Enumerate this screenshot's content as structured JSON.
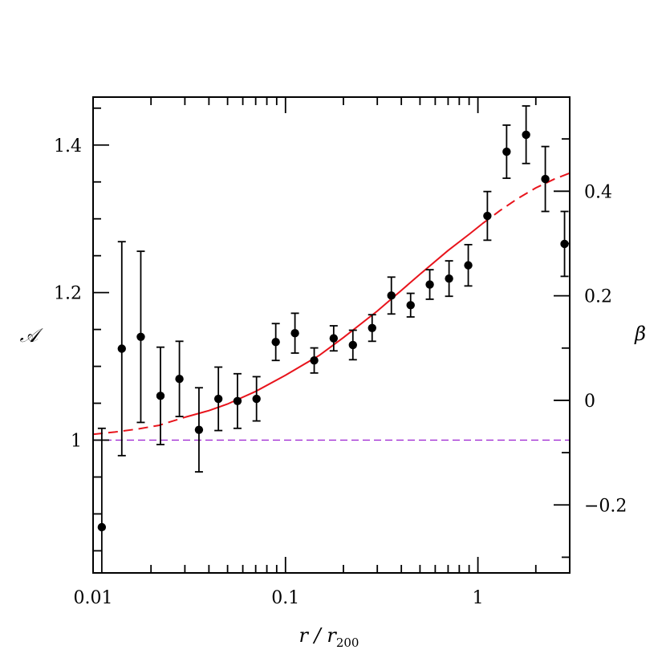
{
  "chart_data": {
    "type": "scatter",
    "xscale": "log",
    "xlim": [
      0.01,
      3.0
    ],
    "ylim": [
      0.82,
      1.465
    ],
    "y2lim": [
      -0.33,
      0.58
    ],
    "x_ticks": [
      {
        "value": 0.01,
        "label": "0.01"
      },
      {
        "value": 0.1,
        "label": "0.1"
      },
      {
        "value": 1,
        "label": "1"
      }
    ],
    "y_ticks": [
      {
        "value": 1.0,
        "label": "1"
      },
      {
        "value": 1.2,
        "label": "1.2"
      },
      {
        "value": 1.4,
        "label": "1.4"
      }
    ],
    "y2_ticks": [
      {
        "value": -0.2,
        "label": "−0.2"
      },
      {
        "value": 0,
        "label": "0"
      },
      {
        "value": 0.2,
        "label": "0.2"
      },
      {
        "value": 0.4,
        "label": "0.4"
      }
    ],
    "xlabel": "r / r",
    "xlabel_sub": "200",
    "ylabel": "𝒜",
    "y2label": "β",
    "grid": false,
    "series": [
      {
        "type": "errorbar",
        "color": "#000000",
        "points": [
          {
            "x": 0.0111,
            "y": 0.882,
            "err": 0.134
          },
          {
            "x": 0.0141,
            "y": 1.124,
            "err": 0.145
          },
          {
            "x": 0.0177,
            "y": 1.14,
            "err": 0.116
          },
          {
            "x": 0.0224,
            "y": 1.06,
            "err": 0.066
          },
          {
            "x": 0.0281,
            "y": 1.083,
            "err": 0.051
          },
          {
            "x": 0.0355,
            "y": 1.014,
            "err": 0.057
          },
          {
            "x": 0.0448,
            "y": 1.056,
            "err": 0.043
          },
          {
            "x": 0.0563,
            "y": 1.053,
            "err": 0.037
          },
          {
            "x": 0.0707,
            "y": 1.056,
            "err": 0.03
          },
          {
            "x": 0.089,
            "y": 1.133,
            "err": 0.025
          },
          {
            "x": 0.112,
            "y": 1.145,
            "err": 0.027
          },
          {
            "x": 0.141,
            "y": 1.108,
            "err": 0.017
          },
          {
            "x": 0.178,
            "y": 1.138,
            "err": 0.017
          },
          {
            "x": 0.224,
            "y": 1.129,
            "err": 0.02
          },
          {
            "x": 0.282,
            "y": 1.152,
            "err": 0.018
          },
          {
            "x": 0.355,
            "y": 1.196,
            "err": 0.025
          },
          {
            "x": 0.447,
            "y": 1.183,
            "err": 0.016
          },
          {
            "x": 0.562,
            "y": 1.211,
            "err": 0.02
          },
          {
            "x": 0.708,
            "y": 1.219,
            "err": 0.024
          },
          {
            "x": 0.891,
            "y": 1.237,
            "err": 0.028
          },
          {
            "x": 1.12,
            "y": 1.304,
            "err": 0.033
          },
          {
            "x": 1.41,
            "y": 1.391,
            "err": 0.036
          },
          {
            "x": 1.78,
            "y": 1.414,
            "err": 0.039
          },
          {
            "x": 2.24,
            "y": 1.354,
            "err": 0.044
          },
          {
            "x": 2.82,
            "y": 1.266,
            "err": 0.044
          }
        ]
      },
      {
        "type": "line",
        "style": "solid",
        "color": "#e8141c",
        "points": [
          [
            0.03,
            1.031
          ],
          [
            0.04,
            1.04
          ],
          [
            0.05,
            1.049
          ],
          [
            0.07,
            1.066
          ],
          [
            0.1,
            1.088
          ],
          [
            0.15,
            1.115
          ],
          [
            0.2,
            1.139
          ],
          [
            0.3,
            1.175
          ],
          [
            0.4,
            1.203
          ],
          [
            0.5,
            1.225
          ],
          [
            0.7,
            1.257
          ],
          [
            0.9,
            1.279
          ],
          [
            1.05,
            1.293
          ]
        ]
      },
      {
        "type": "line",
        "style": "dashed",
        "color": "#e8141c",
        "points": [
          [
            0.01,
            1.008
          ],
          [
            0.013,
            1.011
          ],
          [
            0.017,
            1.015
          ],
          [
            0.022,
            1.02
          ],
          [
            0.03,
            1.031
          ]
        ]
      },
      {
        "type": "line",
        "style": "dashed",
        "color": "#e8141c",
        "points": [
          [
            1.05,
            1.293
          ],
          [
            1.3,
            1.311
          ],
          [
            1.6,
            1.327
          ],
          [
            2.0,
            1.342
          ],
          [
            2.5,
            1.354
          ],
          [
            3.0,
            1.362
          ]
        ]
      },
      {
        "type": "hline",
        "style": "dashed",
        "color": "#9a1fd0",
        "y": 1.0
      }
    ]
  }
}
